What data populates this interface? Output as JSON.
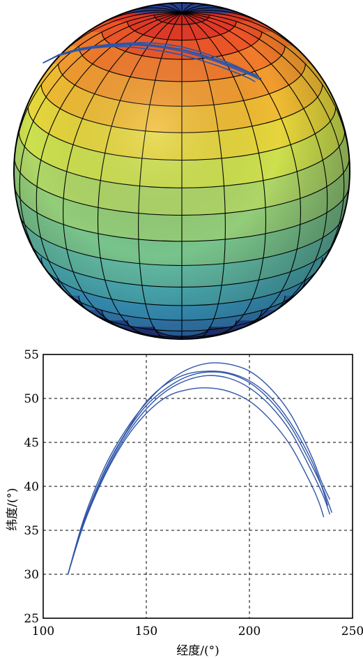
{
  "colors": {
    "trajectory": "#2f55a8",
    "grid": "#000000",
    "sphere_bands_top_to_bottom": [
      "#cf2a22",
      "#e23a26",
      "#ee5628",
      "#f27a2b",
      "#f29b2f",
      "#f0bc33",
      "#e6d63c",
      "#cde04e",
      "#aed667",
      "#93cd79",
      "#78c38c",
      "#62bca6",
      "#4fb4bd",
      "#3fa4cf",
      "#3a8ecc",
      "#3579c2",
      "#2f64b4",
      "#2b53a3",
      "#283f90"
    ]
  },
  "chart_data": [
    {
      "type": "surface",
      "description_labels": [],
      "sphere": {
        "latitude_bands": 19,
        "longitude_lines": 24
      },
      "trajectory_series_count": 5
    },
    {
      "type": "line",
      "xlabel": "经度/(°)",
      "ylabel": "纬度/(°)",
      "xlim": [
        100,
        250
      ],
      "ylim": [
        25,
        55
      ],
      "xticks": [
        100,
        150,
        200,
        250
      ],
      "yticks": [
        25,
        30,
        35,
        40,
        45,
        50,
        55
      ],
      "grid": true,
      "grid_style": "dashed",
      "series": [
        {
          "x": [
            112,
            120,
            130,
            140,
            150,
            160,
            170,
            180,
            190,
            200,
            210,
            220,
            230,
            235,
            239
          ],
          "y": [
            30,
            36.5,
            42.3,
            46.4,
            49.5,
            51.8,
            53.3,
            54.0,
            53.9,
            53.1,
            51.2,
            48.2,
            43.5,
            40.5,
            38.5
          ]
        },
        {
          "x": [
            112,
            120,
            130,
            140,
            150,
            160,
            170,
            180,
            190,
            200,
            210,
            220,
            230,
            236,
            240
          ],
          "y": [
            30,
            36.2,
            41.8,
            46.0,
            49.2,
            51.2,
            52.5,
            53.0,
            52.8,
            51.8,
            49.8,
            46.8,
            42.5,
            39.5,
            37.0
          ]
        },
        {
          "x": [
            112,
            120,
            130,
            140,
            150,
            160,
            170,
            180,
            190,
            200,
            210,
            220,
            230,
            236,
            239
          ],
          "y": [
            30,
            36.0,
            41.5,
            45.7,
            48.8,
            50.9,
            52.1,
            52.6,
            52.3,
            51.2,
            49.2,
            46.2,
            41.8,
            38.8,
            36.8
          ]
        },
        {
          "x": [
            112,
            120,
            130,
            140,
            150,
            160,
            170,
            180,
            190,
            200,
            210,
            220,
            230,
            234,
            236
          ],
          "y": [
            30,
            35.9,
            41.3,
            45.4,
            48.3,
            50.2,
            51.0,
            51.2,
            50.8,
            49.7,
            47.6,
            44.6,
            40.2,
            38.0,
            36.5
          ]
        },
        {
          "x": [
            112,
            120,
            130,
            140,
            150,
            160,
            170,
            180,
            190,
            200,
            210,
            220,
            230,
            235,
            238
          ],
          "y": [
            30,
            36.1,
            41.9,
            46.1,
            49.6,
            51.7,
            52.8,
            53.1,
            52.9,
            52.0,
            50.2,
            47.2,
            43.0,
            40.0,
            37.8
          ]
        }
      ]
    }
  ]
}
